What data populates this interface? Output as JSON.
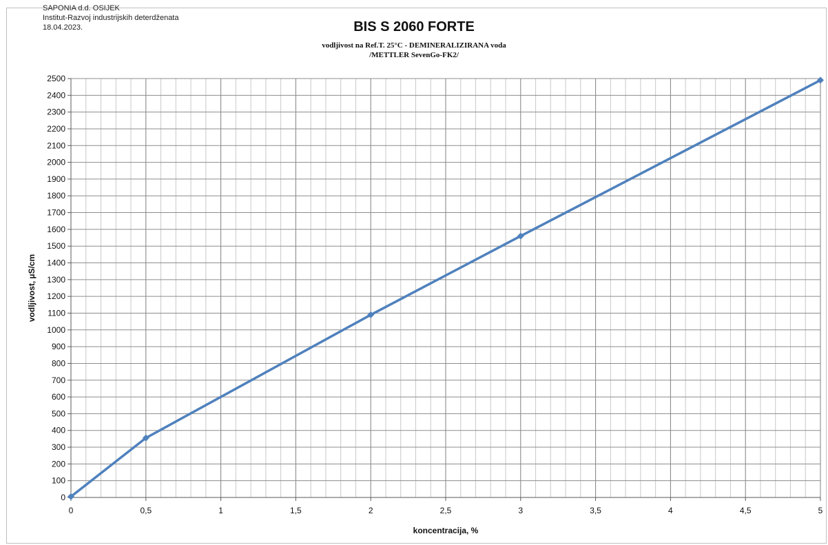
{
  "header": {
    "company": "SAPONIA d.d. OSIJEK",
    "institute": "Institut-Razvoj industrijskih deterdženata",
    "date": "18.04.2023."
  },
  "chart_data": {
    "type": "line",
    "title": "BIS S 2060 FORTE",
    "subtitle": "vodljivost na Ref.T. 25°C - DEMINERALIZIRANA voda",
    "subtitle2": "/METTLER SevenGo-FK2/",
    "xlabel": "koncentracija, %",
    "ylabel": "vodljivost, µS/cm",
    "xlim": [
      0,
      5
    ],
    "ylim": [
      0,
      2500
    ],
    "x_ticks": [
      0,
      0.5,
      1,
      1.5,
      2,
      2.5,
      3,
      3.5,
      4,
      4.5,
      5
    ],
    "x_tick_labels": [
      "0",
      "0,5",
      "1",
      "1,5",
      "2",
      "2,5",
      "3",
      "3,5",
      "4",
      "4,5",
      "5"
    ],
    "y_ticks": [
      0,
      100,
      200,
      300,
      400,
      500,
      600,
      700,
      800,
      900,
      1000,
      1100,
      1200,
      1300,
      1400,
      1500,
      1600,
      1700,
      1800,
      1900,
      2000,
      2100,
      2200,
      2300,
      2400,
      2500
    ],
    "grid": true,
    "legend": "none",
    "series": [
      {
        "x": [
          0,
          0.5,
          2,
          3,
          5
        ],
        "y": [
          5,
          355,
          1090,
          1560,
          2490
        ],
        "color": "#4f81bd"
      }
    ]
  }
}
